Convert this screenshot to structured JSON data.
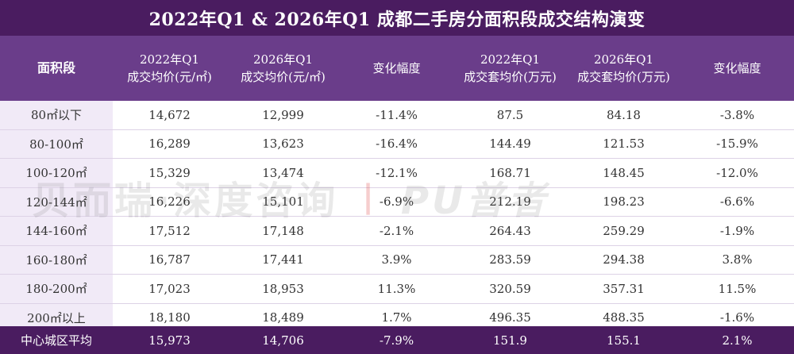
{
  "title": "2022年Q1 & 2026年Q1 成都二手房分面积段成交结构演变",
  "headers": [
    {
      "line1": "面积段",
      "line2": ""
    },
    {
      "line1": "2022年Q1",
      "line2": "成交均价(元/㎡)"
    },
    {
      "line1": "2026年Q1",
      "line2": "成交均价(元/㎡)"
    },
    {
      "line1": "变化幅度",
      "line2": ""
    },
    {
      "line1": "2022年Q1",
      "line2": "成交套均价(万元)"
    },
    {
      "line1": "2026年Q1",
      "line2": "成交套均价(万元)"
    },
    {
      "line1": "变化幅度",
      "line2": ""
    }
  ],
  "rows": [
    [
      "80㎡以下",
      "14,672",
      "12,999",
      "-11.4%",
      "87.5",
      "84.18",
      "-3.8%"
    ],
    [
      "80-100㎡",
      "16,289",
      "13,623",
      "-16.4%",
      "144.49",
      "121.53",
      "-15.9%"
    ],
    [
      "100-120㎡",
      "15,329",
      "13,474",
      "-12.1%",
      "168.71",
      "148.45",
      "-12.0%"
    ],
    [
      "120-144㎡",
      "16,226",
      "15,101",
      "-6.9%",
      "212.19",
      "198.23",
      "-6.6%"
    ],
    [
      "144-160㎡",
      "17,512",
      "17,148",
      "-2.1%",
      "264.43",
      "259.29",
      "-1.9%"
    ],
    [
      "160-180㎡",
      "16,787",
      "17,441",
      "3.9%",
      "283.59",
      "294.38",
      "3.8%"
    ],
    [
      "180-200㎡",
      "17,023",
      "18,953",
      "11.3%",
      "320.59",
      "357.31",
      "11.5%"
    ],
    [
      "200㎡以上",
      "18,180",
      "18,489",
      "1.7%",
      "496.35",
      "488.35",
      "-1.6%"
    ]
  ],
  "footer": [
    "中心城区平均",
    "15,973",
    "14,706",
    "-7.9%",
    "151.9",
    "155.1",
    "2.1%"
  ],
  "watermark": {
    "text1": "贝而瑞·深度咨询",
    "separator": "|",
    "text2": "PU普者"
  },
  "colors": {
    "title_bg": "#4a1c60",
    "header_bg": "#6a3d8a",
    "first_col_bg": "#f1eaf7"
  }
}
